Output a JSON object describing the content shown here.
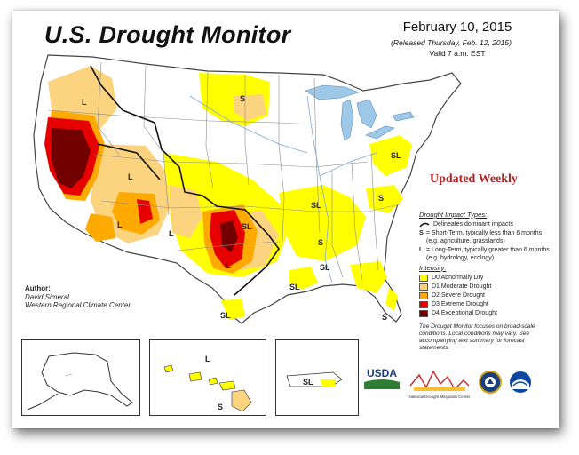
{
  "title": "U.S. Drought Monitor",
  "date": "February 10, 2015",
  "released": "(Released Thursday, Feb. 12, 2015)",
  "valid": "Valid 7 a.m. EST",
  "updated_banner": "Updated Weekly",
  "author": {
    "heading": "Author:",
    "name": "David Simeral",
    "org": "Western Regional Climate Center"
  },
  "impact_types": {
    "heading": "Drought Impact Types:",
    "delineates": "Delineates dominant impacts",
    "short_key": "S",
    "short_text": "= Short-Term, typically less than 6 months (e.g. agriculture, grasslands)",
    "long_key": "L",
    "long_text": "= Long-Term, typically greater than 6 months (e.g. hydrology, ecology)"
  },
  "intensity": {
    "heading": "Intensity:",
    "levels": [
      {
        "label": "D0 Abnormally Dry",
        "color": "#ffff00"
      },
      {
        "label": "D1 Moderate Drought",
        "color": "#fcd37f"
      },
      {
        "label": "D2 Severe Drought",
        "color": "#ffaa00"
      },
      {
        "label": "D3 Extreme Drought",
        "color": "#e60000"
      },
      {
        "label": "D4 Exceptional Drought",
        "color": "#730000"
      }
    ]
  },
  "note": "The Drought Monitor focuses on broad-scale conditions. Local conditions may vary. See accompanying text summary for forecast statements.",
  "map_labels": {
    "L": "L",
    "S": "S",
    "SL": "SL"
  },
  "logo_text": {
    "usda": "USDA",
    "ndmc": "National Drought Mitigation Center"
  },
  "map_colors": {
    "land": "#ffffff",
    "water": "#9ec8e8",
    "borders": "#8c8c8c",
    "rivers": "#7da7d9"
  }
}
